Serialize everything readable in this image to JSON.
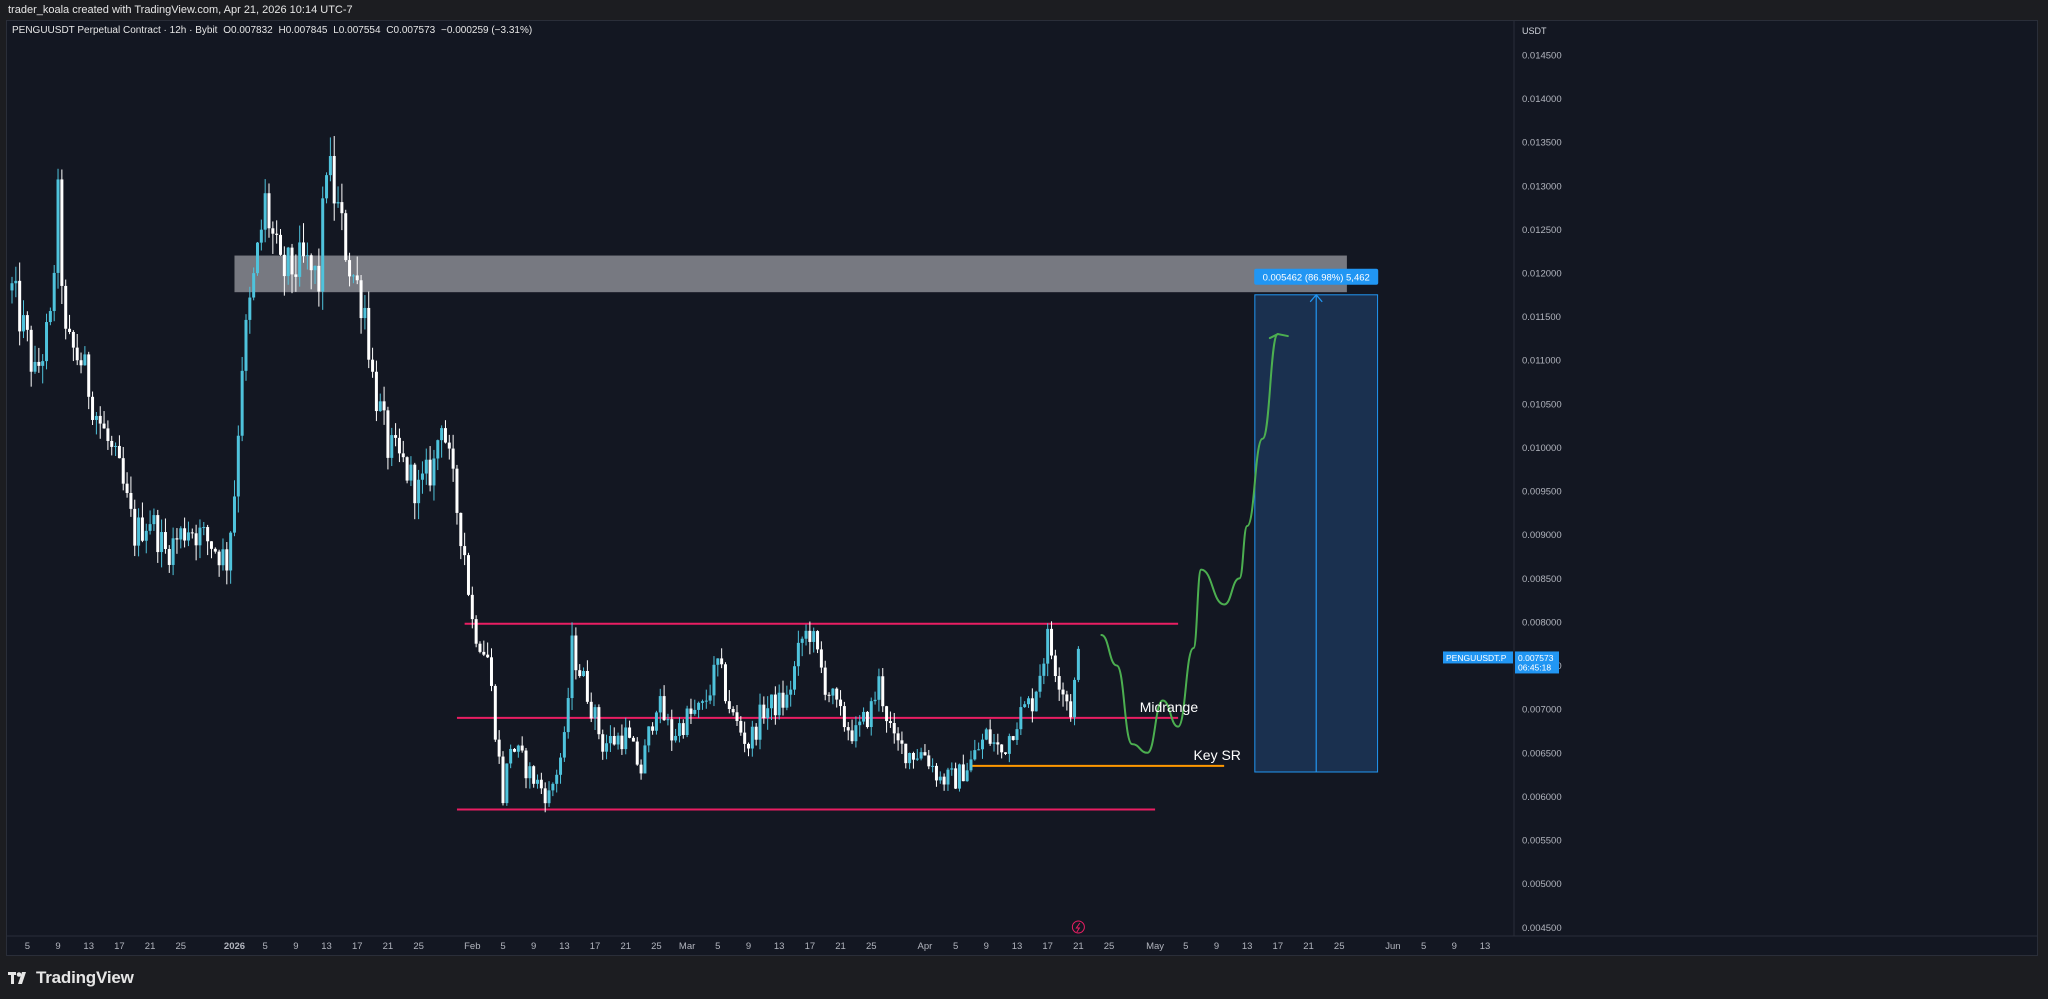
{
  "header": {
    "attribution": "trader_koala created with TradingView.com, Apr 21, 2026 10:14 UTC-7"
  },
  "legend": {
    "symbol": "PENGUUSDT Perpetual Contract · 12h · Bybit",
    "open": "O0.007832",
    "high": "H0.007845",
    "low": "L0.007554",
    "close": "C0.007573",
    "change": "−0.000259 (−3.31%)"
  },
  "price_axis": {
    "currency": "USDT",
    "labels": [
      "0.014500",
      "0.014000",
      "0.013500",
      "0.013000",
      "0.012500",
      "0.012000",
      "0.011500",
      "0.011000",
      "0.010500",
      "0.010000",
      "0.009500",
      "0.009000",
      "0.008500",
      "0.008000",
      "0.007500",
      "0.007000",
      "0.006500",
      "0.006000",
      "0.005500",
      "0.005000",
      "0.004500"
    ]
  },
  "symbol_badge": {
    "name": "PENGUUSDT.P",
    "price": "0.007573",
    "countdown": "06:45:18"
  },
  "measure_label": "0.005462 (86.98%) 5,462",
  "annotations": {
    "midrange": "Midrange",
    "key_sr": "Key SR"
  },
  "footer": {
    "brand": "TradingView"
  },
  "colors": {
    "bull": "#4fc3dc",
    "bear": "#ffffff",
    "range_lines": "#e91e63",
    "key_sr": "#ff9800",
    "supply_zone": "#8a8b92",
    "target_box": "#1e3a5f",
    "measure": "#2196f3",
    "projection": "#4caf50"
  },
  "chart_data": {
    "type": "candlestick",
    "timeframe": "12h",
    "ylim": [
      0.0044,
      0.0149
    ],
    "date_range": [
      "2025-12-03",
      "2026-06-16"
    ],
    "x_ticks": [
      {
        "date": "2025-12-05",
        "label": "5"
      },
      {
        "date": "2025-12-09",
        "label": "9"
      },
      {
        "date": "2025-12-13",
        "label": "13"
      },
      {
        "date": "2025-12-17",
        "label": "17"
      },
      {
        "date": "2025-12-21",
        "label": "21"
      },
      {
        "date": "2025-12-25",
        "label": "25"
      },
      {
        "date": "2026-01-01",
        "label": "2026"
      },
      {
        "date": "2026-01-05",
        "label": "5"
      },
      {
        "date": "2026-01-09",
        "label": "9"
      },
      {
        "date": "2026-01-13",
        "label": "13"
      },
      {
        "date": "2026-01-17",
        "label": "17"
      },
      {
        "date": "2026-01-21",
        "label": "21"
      },
      {
        "date": "2026-01-25",
        "label": "25"
      },
      {
        "date": "2026-02-01",
        "label": "Feb"
      },
      {
        "date": "2026-02-05",
        "label": "5"
      },
      {
        "date": "2026-02-09",
        "label": "9"
      },
      {
        "date": "2026-02-13",
        "label": "13"
      },
      {
        "date": "2026-02-17",
        "label": "17"
      },
      {
        "date": "2026-02-21",
        "label": "21"
      },
      {
        "date": "2026-02-25",
        "label": "25"
      },
      {
        "date": "2026-03-01",
        "label": "Mar"
      },
      {
        "date": "2026-03-05",
        "label": "5"
      },
      {
        "date": "2026-03-09",
        "label": "9"
      },
      {
        "date": "2026-03-13",
        "label": "13"
      },
      {
        "date": "2026-03-17",
        "label": "17"
      },
      {
        "date": "2026-03-21",
        "label": "21"
      },
      {
        "date": "2026-03-25",
        "label": "25"
      },
      {
        "date": "2026-04-01",
        "label": "Apr"
      },
      {
        "date": "2026-04-05",
        "label": "5"
      },
      {
        "date": "2026-04-09",
        "label": "9"
      },
      {
        "date": "2026-04-13",
        "label": "13"
      },
      {
        "date": "2026-04-17",
        "label": "17"
      },
      {
        "date": "2026-04-21",
        "label": "21"
      },
      {
        "date": "2026-04-25",
        "label": "25"
      },
      {
        "date": "2026-05-01",
        "label": "May"
      },
      {
        "date": "2026-05-05",
        "label": "5"
      },
      {
        "date": "2026-05-09",
        "label": "9"
      },
      {
        "date": "2026-05-13",
        "label": "13"
      },
      {
        "date": "2026-05-17",
        "label": "17"
      },
      {
        "date": "2026-05-21",
        "label": "21"
      },
      {
        "date": "2026-05-25",
        "label": "25"
      },
      {
        "date": "2026-06-01",
        "label": "Jun"
      },
      {
        "date": "2026-06-05",
        "label": "5"
      },
      {
        "date": "2026-06-09",
        "label": "9"
      },
      {
        "date": "2026-06-13",
        "label": "13"
      }
    ],
    "close_path": [
      [
        "2025-12-03",
        0.0118
      ],
      [
        "2025-12-05",
        0.0112
      ],
      [
        "2025-12-06",
        0.0108
      ],
      [
        "2025-12-08",
        0.0114
      ],
      [
        "2025-12-09",
        0.0128
      ],
      [
        "2025-12-10",
        0.0112
      ],
      [
        "2025-12-12",
        0.011
      ],
      [
        "2025-12-14",
        0.0104
      ],
      [
        "2025-12-17",
        0.0097
      ],
      [
        "2025-12-19",
        0.009
      ],
      [
        "2025-12-21",
        0.0092
      ],
      [
        "2025-12-23",
        0.0088
      ],
      [
        "2025-12-26",
        0.0091
      ],
      [
        "2025-12-29",
        0.0089
      ],
      [
        "2025-12-31",
        0.0087
      ],
      [
        "2026-01-01",
        0.0095
      ],
      [
        "2026-01-02",
        0.011
      ],
      [
        "2026-01-04",
        0.0122
      ],
      [
        "2026-01-05",
        0.0128
      ],
      [
        "2026-01-07",
        0.012
      ],
      [
        "2026-01-10",
        0.0121
      ],
      [
        "2026-01-12",
        0.0119
      ],
      [
        "2026-01-13",
        0.0133
      ],
      [
        "2026-01-15",
        0.0125
      ],
      [
        "2026-01-16",
        0.0121
      ],
      [
        "2026-01-18",
        0.0116
      ],
      [
        "2026-01-19",
        0.0108
      ],
      [
        "2026-01-21",
        0.01
      ],
      [
        "2026-01-23",
        0.0098
      ],
      [
        "2026-01-25",
        0.0095
      ],
      [
        "2026-01-27",
        0.0098
      ],
      [
        "2026-01-28",
        0.0104
      ],
      [
        "2026-01-29",
        0.0098
      ],
      [
        "2026-01-31",
        0.0088
      ],
      [
        "2026-02-01",
        0.008
      ],
      [
        "2026-02-03",
        0.0076
      ],
      [
        "2026-02-05",
        0.006
      ],
      [
        "2026-02-06",
        0.0066
      ],
      [
        "2026-02-09",
        0.0062
      ],
      [
        "2026-02-11",
        0.006
      ],
      [
        "2026-02-13",
        0.0066
      ],
      [
        "2026-02-14",
        0.0077
      ],
      [
        "2026-02-16",
        0.0072
      ],
      [
        "2026-02-18",
        0.0066
      ],
      [
        "2026-02-21",
        0.0067
      ],
      [
        "2026-02-23",
        0.0063
      ],
      [
        "2026-02-25",
        0.0071
      ],
      [
        "2026-02-27",
        0.0067
      ],
      [
        "2026-03-01",
        0.0069
      ],
      [
        "2026-03-03",
        0.007
      ],
      [
        "2026-03-05",
        0.0075
      ],
      [
        "2026-03-07",
        0.0069
      ],
      [
        "2026-03-09",
        0.0066
      ],
      [
        "2026-03-11",
        0.007
      ],
      [
        "2026-03-14",
        0.0071
      ],
      [
        "2026-03-16",
        0.0078
      ],
      [
        "2026-03-17",
        0.0079
      ],
      [
        "2026-03-19",
        0.0073
      ],
      [
        "2026-03-21",
        0.0069
      ],
      [
        "2026-03-23",
        0.0067
      ],
      [
        "2026-03-25",
        0.007
      ],
      [
        "2026-03-26",
        0.0073
      ],
      [
        "2026-03-28",
        0.0066
      ],
      [
        "2026-03-30",
        0.0065
      ],
      [
        "2026-04-01",
        0.0065
      ],
      [
        "2026-04-03",
        0.0062
      ],
      [
        "2026-04-05",
        0.0062
      ],
      [
        "2026-04-07",
        0.0064
      ],
      [
        "2026-04-09",
        0.0067
      ],
      [
        "2026-04-11",
        0.0065
      ],
      [
        "2026-04-13",
        0.0069
      ],
      [
        "2026-04-15",
        0.0071
      ],
      [
        "2026-04-17",
        0.0078
      ],
      [
        "2026-04-18",
        0.0075
      ],
      [
        "2026-04-20",
        0.007
      ],
      [
        "2026-04-21",
        0.00757
      ]
    ],
    "horizontal_levels": [
      {
        "name": "range-high",
        "price": 0.00798,
        "from": "2026-01-31",
        "to": "2026-05-04"
      },
      {
        "name": "midrange",
        "price": 0.0069,
        "from": "2026-01-30",
        "to": "2026-05-04"
      },
      {
        "name": "key-sr",
        "price": 0.00635,
        "from": "2026-04-07",
        "to": "2026-05-10"
      },
      {
        "name": "range-low",
        "price": 0.00585,
        "from": "2026-01-30",
        "to": "2026-05-01"
      }
    ],
    "supply_zone": {
      "from": "2026-01-01",
      "to": "2026-05-26",
      "top": 0.0122,
      "bottom": 0.01178
    },
    "target_box": {
      "from": "2026-05-14",
      "to": "2026-05-30",
      "top": 0.01175,
      "bottom": 0.00628,
      "change": "0.005462 (86.98%)",
      "ticks": "5,462"
    },
    "projection_path": [
      [
        "2026-04-24",
        0.00785
      ],
      [
        "2026-04-26",
        0.0075
      ],
      [
        "2026-04-28",
        0.0066
      ],
      [
        "2026-04-30",
        0.0065
      ],
      [
        "2026-05-02",
        0.0071
      ],
      [
        "2026-05-04",
        0.0068
      ],
      [
        "2026-05-06",
        0.0077
      ],
      [
        "2026-05-07",
        0.0086
      ],
      [
        "2026-05-10",
        0.0082
      ],
      [
        "2026-05-12",
        0.0085
      ],
      [
        "2026-05-13",
        0.0091
      ],
      [
        "2026-05-15",
        0.0101
      ],
      [
        "2026-05-17",
        0.0113
      ]
    ]
  }
}
